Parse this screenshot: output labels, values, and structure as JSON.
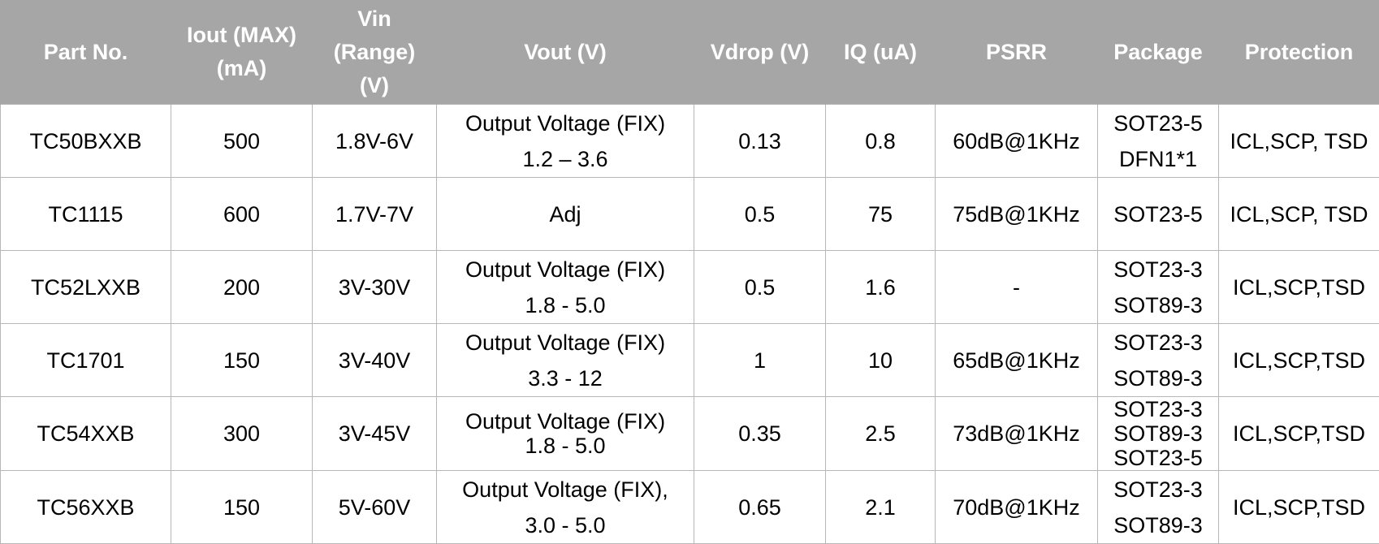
{
  "table": {
    "headers": [
      {
        "lines": [
          "Part No."
        ]
      },
      {
        "lines": [
          "Iout (MAX)",
          "(mA)"
        ]
      },
      {
        "lines": [
          "Vin",
          "(Range)",
          "(V)"
        ]
      },
      {
        "lines": [
          "Vout (V)"
        ]
      },
      {
        "lines": [
          "Vdrop (V)"
        ]
      },
      {
        "lines": [
          "IQ (uA)"
        ]
      },
      {
        "lines": [
          "PSRR"
        ]
      },
      {
        "lines": [
          "Package"
        ]
      },
      {
        "lines": [
          "Protection"
        ]
      }
    ],
    "rows": [
      [
        [
          "TC50BXXB"
        ],
        [
          "500"
        ],
        [
          "1.8V-6V"
        ],
        [
          "Output Voltage (FIX)",
          "1.2 – 3.6"
        ],
        [
          "0.13"
        ],
        [
          "0.8"
        ],
        [
          "60dB@1KHz"
        ],
        [
          "SOT23-5",
          "DFN1*1"
        ],
        [
          "ICL,SCP, TSD"
        ]
      ],
      [
        [
          "TC1115"
        ],
        [
          "600"
        ],
        [
          "1.7V-7V"
        ],
        [
          "Adj"
        ],
        [
          "0.5"
        ],
        [
          "75"
        ],
        [
          "75dB@1KHz"
        ],
        [
          "SOT23-5"
        ],
        [
          "ICL,SCP, TSD"
        ]
      ],
      [
        [
          "TC52LXXB"
        ],
        [
          "200"
        ],
        [
          "3V-30V"
        ],
        [
          "Output Voltage (FIX)",
          "1.8 - 5.0"
        ],
        [
          "0.5"
        ],
        [
          "1.6"
        ],
        [
          "-"
        ],
        [
          "SOT23-3",
          "SOT89-3"
        ],
        [
          "ICL,SCP,TSD"
        ]
      ],
      [
        [
          "TC1701"
        ],
        [
          "150"
        ],
        [
          "3V-40V"
        ],
        [
          "Output Voltage (FIX)",
          "3.3 - 12"
        ],
        [
          "1"
        ],
        [
          "10"
        ],
        [
          "65dB@1KHz"
        ],
        [
          "SOT23-3",
          "SOT89-3"
        ],
        [
          "ICL,SCP,TSD"
        ]
      ],
      [
        [
          "TC54XXB"
        ],
        [
          "300"
        ],
        [
          "3V-45V"
        ],
        [
          "Output Voltage (FIX)",
          "1.8 - 5.0"
        ],
        [
          "0.35"
        ],
        [
          "2.5"
        ],
        [
          "73dB@1KHz"
        ],
        [
          "SOT23-3",
          "SOT89-3",
          "SOT23-5"
        ],
        [
          "ICL,SCP,TSD"
        ]
      ],
      [
        [
          "TC56XXB"
        ],
        [
          "150"
        ],
        [
          "5V-60V"
        ],
        [
          "Output Voltage (FIX),",
          "3.0 - 5.0"
        ],
        [
          "0.65"
        ],
        [
          "2.1"
        ],
        [
          "70dB@1KHz"
        ],
        [
          "SOT23-3",
          "SOT89-3"
        ],
        [
          "ICL,SCP,TSD"
        ]
      ]
    ]
  },
  "colors": {
    "header_background": "#a6a6a6",
    "header_text": "#ffffff",
    "grid_line": "#b7b7b7",
    "body_text": "#000000"
  }
}
